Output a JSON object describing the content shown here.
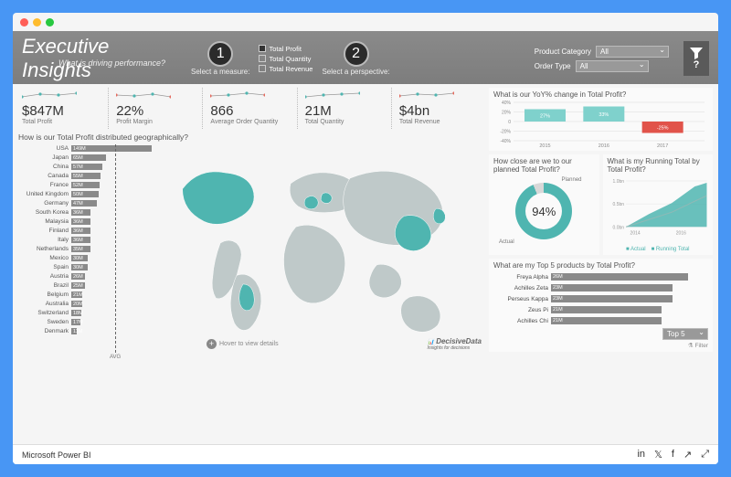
{
  "header": {
    "title": "Executive Insights",
    "subtitle": "What is driving performance?",
    "step1_label": "Select a measure:",
    "step2_label": "Select a perspective:",
    "measures": [
      {
        "label": "Total Profit",
        "checked": true
      },
      {
        "label": "Total Quantity",
        "checked": false
      },
      {
        "label": "Total Revenue",
        "checked": false
      }
    ],
    "filters": {
      "product_category_label": "Product Category",
      "product_category_value": "All",
      "order_type_label": "Order Type",
      "order_type_value": "All"
    },
    "help_label": "?"
  },
  "kpis": [
    {
      "value": "$847M",
      "label": "Total Profit",
      "spark_color": "#4fb5b0",
      "accent": "#4fb5b0",
      "points": [
        4,
        7,
        6,
        8
      ]
    },
    {
      "value": "22%",
      "label": "Profit Margin",
      "spark_color": "#4fb5b0",
      "accent": "#e46a5e",
      "points": [
        6,
        5,
        7,
        4
      ]
    },
    {
      "value": "866",
      "label": "Average Order Quantity",
      "spark_color": "#4fb5b0",
      "accent": "#e46a5e",
      "points": [
        5,
        6,
        8,
        6
      ]
    },
    {
      "value": "21M",
      "label": "Total Quantity",
      "spark_color": "#4fb5b0",
      "accent": "#4fb5b0",
      "points": [
        4,
        6,
        7,
        8
      ]
    },
    {
      "value": "$4bn",
      "label": "Total Revenue",
      "spark_color": "#4fb5b0",
      "accent": "#e46a5e",
      "points": [
        5,
        7,
        6,
        8
      ]
    }
  ],
  "geo": {
    "title": "How is our Total Profit distributed geographically?",
    "avg_label": "AVG",
    "hover_text": "Hover to view details",
    "brand": "DecisiveData",
    "bar_color": "#8a8a8a",
    "max": 149,
    "bars": [
      {
        "name": "USA",
        "value": 149,
        "label": "149M"
      },
      {
        "name": "Japan",
        "value": 65,
        "label": "65M"
      },
      {
        "name": "China",
        "value": 57,
        "label": "57M"
      },
      {
        "name": "Canada",
        "value": 55,
        "label": "55M"
      },
      {
        "name": "France",
        "value": 52,
        "label": "52M"
      },
      {
        "name": "United Kingdom",
        "value": 50,
        "label": "50M"
      },
      {
        "name": "Germany",
        "value": 47,
        "label": "47M"
      },
      {
        "name": "South Korea",
        "value": 36,
        "label": "36M"
      },
      {
        "name": "Malaysia",
        "value": 36,
        "label": "36M"
      },
      {
        "name": "Finland",
        "value": 36,
        "label": "36M"
      },
      {
        "name": "Italy",
        "value": 36,
        "label": "36M"
      },
      {
        "name": "Netherlands",
        "value": 35,
        "label": "35M"
      },
      {
        "name": "Mexico",
        "value": 30,
        "label": "30M"
      },
      {
        "name": "Spain",
        "value": 30,
        "label": "30M"
      },
      {
        "name": "Austria",
        "value": 26,
        "label": "26M"
      },
      {
        "name": "Brazil",
        "value": 25,
        "label": "25M"
      },
      {
        "name": "Belgium",
        "value": 21,
        "label": "21M"
      },
      {
        "name": "Australia",
        "value": 20,
        "label": "20M"
      },
      {
        "name": "Switzerland",
        "value": 18,
        "label": "18M"
      },
      {
        "name": "Sweden",
        "value": 17,
        "label": "17M"
      },
      {
        "name": "Denmark",
        "value": 11,
        "label": "11M"
      }
    ],
    "map_fill": "#bfc9c9",
    "map_highlight": "#4fb5b0"
  },
  "yoy": {
    "title": "What is our YoY% change in Total Profit?",
    "ylim": [
      -40,
      40
    ],
    "yticks": [
      "40%",
      "20%",
      "0",
      "-20%",
      "-40%"
    ],
    "categories": [
      "2015",
      "2016",
      "2017"
    ],
    "values": [
      27,
      33,
      -25
    ],
    "labels": [
      "27%",
      "33%",
      "-25%"
    ],
    "pos_color": "#7fd1cc",
    "neg_color": "#e1534a",
    "grid_color": "#dcdcdc"
  },
  "donut": {
    "title": "How close are we to our planned Total Profit?",
    "percent": 94,
    "percent_label": "94%",
    "planned_label": "Planned",
    "actual_label": "Actual",
    "fill": "#4fb5b0",
    "track": "#d8d8d8"
  },
  "running": {
    "title": "What is my Running Total by Total Profit?",
    "yticks": [
      "1.0bn",
      "0.5bn",
      "0.0bn"
    ],
    "xticks": [
      "2014",
      "2016"
    ],
    "actual_color": "#4fb5b0",
    "series2_color": "#8fb9b6",
    "legend": [
      "Actual",
      "Running Total"
    ]
  },
  "top5": {
    "title": "What are my Top 5 products by Total Profit?",
    "bar_color": "#8a8a8a",
    "max": 26,
    "rows": [
      {
        "name": "Freya Alpha",
        "value": 26,
        "label": "26M"
      },
      {
        "name": "Achilles Zeta",
        "value": 23,
        "label": "23M"
      },
      {
        "name": "Perseus Kappa",
        "value": 23,
        "label": "23M"
      },
      {
        "name": "Zeus Pi",
        "value": 21,
        "label": "21M"
      },
      {
        "name": "Achilles Chi",
        "value": 21,
        "label": "21M"
      }
    ],
    "selector_label": "Top 5",
    "filter_label": "Filter"
  },
  "footer": {
    "brand": "Microsoft Power BI"
  }
}
